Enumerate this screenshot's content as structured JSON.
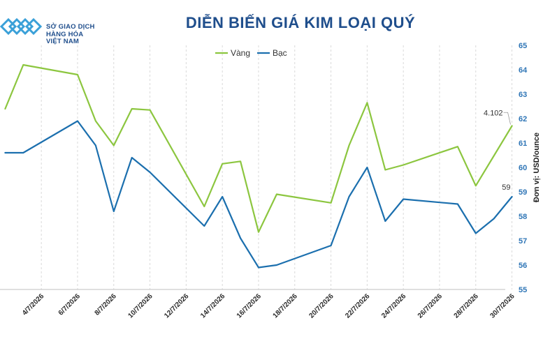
{
  "header": {
    "logo_lines": [
      "SỞ GIAO DỊCH",
      "HÀNG HÓA",
      "VIỆT NAM"
    ],
    "title": "DIỄN BIẾN GIÁ KIM LOẠI QUÝ"
  },
  "chart_data": {
    "type": "line",
    "title": "DIỄN BIẾN GIÁ KIM LOẠI QUÝ",
    "ylabel_right": "Đơn vị: USD/ounce",
    "x": [
      "2/7/2026",
      "3/7/2026",
      "6/7/2026",
      "7/7/2026",
      "8/7/2026",
      "9/7/2026",
      "10/7/2026",
      "13/7/2026",
      "14/7/2026",
      "15/7/2026",
      "16/7/2026",
      "17/7/2026",
      "20/7/2026",
      "21/7/2026",
      "22/7/2026",
      "23/7/2026",
      "24/7/2026",
      "27/7/2026",
      "28/7/2026",
      "29/7/2026",
      "30/7/2026"
    ],
    "x_start_value": 62.4,
    "x_tick_labels": [
      "4/7/2026",
      "6/7/2026",
      "8/7/2026",
      "10/7/2026",
      "12/7/2026",
      "14/7/2026",
      "16/7/2026",
      "18/7/2026",
      "20/7/2026",
      "22/7/2026",
      "24/7/2026",
      "26/7/2026",
      "28/7/2026",
      "30/7/2026"
    ],
    "y_right": {
      "min": 55,
      "max": 65,
      "step": 1
    },
    "series": [
      {
        "name": "Vàng",
        "color": "#8cc63f",
        "points": [
          [
            "2/7/2026",
            62.4
          ],
          [
            "3/7/2026",
            64.2
          ],
          [
            "6/7/2026",
            63.8
          ],
          [
            "7/7/2026",
            61.9
          ],
          [
            "8/7/2026",
            60.9
          ],
          [
            "9/7/2026",
            62.4
          ],
          [
            "10/7/2026",
            62.35
          ],
          [
            "13/7/2026",
            58.4
          ],
          [
            "14/7/2026",
            60.15
          ],
          [
            "15/7/2026",
            60.25
          ],
          [
            "16/7/2026",
            57.35
          ],
          [
            "17/7/2026",
            58.9
          ],
          [
            "20/7/2026",
            58.55
          ],
          [
            "21/7/2026",
            60.9
          ],
          [
            "22/7/2026",
            62.65
          ],
          [
            "23/7/2026",
            59.9
          ],
          [
            "24/7/2026",
            60.1
          ],
          [
            "27/7/2026",
            60.85
          ],
          [
            "28/7/2026",
            59.25
          ],
          [
            "30/7/2026",
            61.7
          ]
        ]
      },
      {
        "name": "Bạc",
        "color": "#1b6fae",
        "points": [
          [
            "2/7/2026",
            60.6
          ],
          [
            "3/7/2026",
            60.6
          ],
          [
            "6/7/2026",
            61.9
          ],
          [
            "7/7/2026",
            60.9
          ],
          [
            "8/7/2026",
            58.2
          ],
          [
            "9/7/2026",
            60.4
          ],
          [
            "10/7/2026",
            59.8
          ],
          [
            "13/7/2026",
            57.6
          ],
          [
            "14/7/2026",
            58.8
          ],
          [
            "15/7/2026",
            57.1
          ],
          [
            "16/7/2026",
            55.9
          ],
          [
            "17/7/2026",
            56.0
          ],
          [
            "20/7/2026",
            56.8
          ],
          [
            "21/7/2026",
            58.8
          ],
          [
            "22/7/2026",
            60.0
          ],
          [
            "23/7/2026",
            57.8
          ],
          [
            "24/7/2026",
            58.7
          ],
          [
            "27/7/2026",
            58.5
          ],
          [
            "28/7/2026",
            57.3
          ],
          [
            "29/7/2026",
            57.9
          ],
          [
            "30/7/2026",
            58.8
          ]
        ]
      }
    ],
    "annotations": [
      {
        "series": "Vàng",
        "x": "30/7/2026",
        "text": "4.102"
      },
      {
        "series": "Bạc",
        "x": "30/7/2026",
        "text": "59"
      }
    ],
    "legend": "top-center",
    "grid": {
      "vertical": true,
      "horizontal": false
    }
  }
}
